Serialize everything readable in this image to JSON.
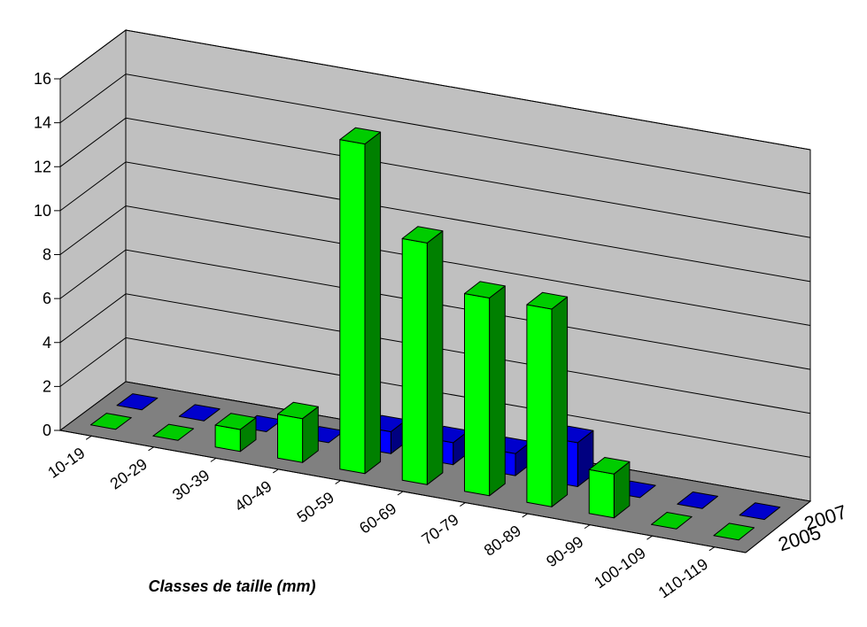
{
  "chart_data": {
    "type": "bar",
    "title": "",
    "xlabel": "Classes de taille (mm)",
    "ylabel": "",
    "ylim": [
      0,
      16
    ],
    "yticks": [
      "0",
      "2",
      "4",
      "6",
      "8",
      "10",
      "12",
      "14",
      "16"
    ],
    "categories": [
      "10-19",
      "20-29",
      "30-39",
      "40-49",
      "50-59",
      "60-69",
      "70-79",
      "80-89",
      "90-99",
      "100-109",
      "110-119"
    ],
    "series": [
      {
        "name": "2005",
        "color": "#00ff00",
        "values": [
          0,
          0,
          1,
          2,
          15,
          11,
          9,
          9,
          2,
          0,
          0
        ]
      },
      {
        "name": "2007",
        "color": "#0000ff",
        "values": [
          0,
          0,
          0,
          0,
          1,
          1,
          1,
          2,
          0,
          0,
          0
        ]
      }
    ],
    "grid": true,
    "style": "3d-column",
    "colors": {
      "wall": "#c0c0c0",
      "floor": "#808080",
      "gridline": "#000000"
    }
  }
}
